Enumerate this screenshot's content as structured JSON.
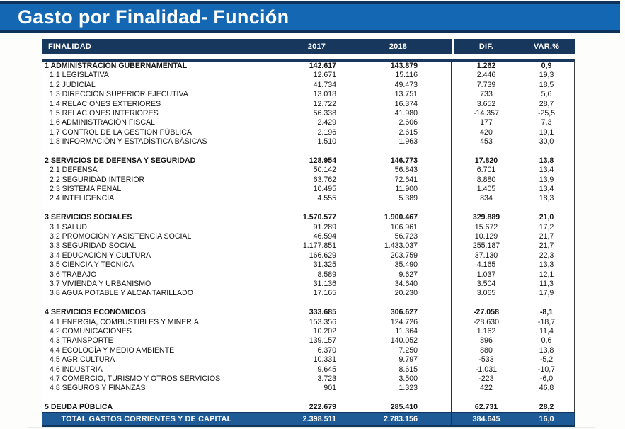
{
  "title": "Gasto por Finalidad- Función",
  "colors": {
    "banner_blue": "#1467b2",
    "header_navy": "#17375d",
    "total_blue": "#1e5a96",
    "divider_line": "#2e2e2e"
  },
  "table": {
    "columns": [
      "FINALIDAD",
      "2017",
      "2018",
      "DIF.",
      "VAR.%"
    ],
    "sections": [
      {
        "label": "1 ADMINISTRACION GUBERNAMENTAL",
        "y2017": "142.617",
        "y2018": "143.879",
        "dif": "1.262",
        "var": "0,9",
        "rows": [
          {
            "label": "1.1  LEGISLATIVA",
            "y2017": "12.671",
            "y2018": "15.116",
            "dif": "2.446",
            "var": "19,3"
          },
          {
            "label": "1.2  JUDICIAL",
            "y2017": "41.734",
            "y2018": "49.473",
            "dif": "7.739",
            "var": "18,5"
          },
          {
            "label": "1.3  DIRECCIÓN SUPERIOR EJECUTIVA",
            "y2017": "13.018",
            "y2018": "13.751",
            "dif": "733",
            "var": "5,6"
          },
          {
            "label": "1.4  RELACIONES EXTERIORES",
            "y2017": "12.722",
            "y2018": "16.374",
            "dif": "3.652",
            "var": "28,7"
          },
          {
            "label": "1.5  RELACIONES INTERIORES",
            "y2017": "56.338",
            "y2018": "41.980",
            "dif": "-14.357",
            "var": "-25,5"
          },
          {
            "label": "1.6  ADMINISTRACIÓN FISCAL",
            "y2017": "2.429",
            "y2018": "2.606",
            "dif": "177",
            "var": "7,3"
          },
          {
            "label": "1.7  CONTROL DE LA GESTIÓN PÚBLICA",
            "y2017": "2.196",
            "y2018": "2.615",
            "dif": "420",
            "var": "19,1"
          },
          {
            "label": "1.8  INFORMACIÓN Y ESTADÍSTICA BÁSICAS",
            "y2017": "1.510",
            "y2018": "1.963",
            "dif": "453",
            "var": "30,0"
          }
        ]
      },
      {
        "label": "2 SERVICIOS DE DEFENSA Y SEGURIDAD",
        "y2017": "128.954",
        "y2018": "146.773",
        "dif": "17.820",
        "var": "13,8",
        "rows": [
          {
            "label": "2.1  DEFENSA",
            "y2017": "50.142",
            "y2018": "56.843",
            "dif": "6.701",
            "var": "13,4"
          },
          {
            "label": "2.2  SEGURIDAD INTERIOR",
            "y2017": "63.762",
            "y2018": "72.641",
            "dif": "8.880",
            "var": "13,9"
          },
          {
            "label": "2.3  SISTEMA PENAL",
            "y2017": "10.495",
            "y2018": "11.900",
            "dif": "1.405",
            "var": "13,4"
          },
          {
            "label": "2.4  INTELIGENCIA",
            "y2017": "4.555",
            "y2018": "5.389",
            "dif": "834",
            "var": "18,3"
          }
        ]
      },
      {
        "label": "3 SERVICIOS SOCIALES",
        "y2017": "1.570.577",
        "y2018": "1.900.467",
        "dif": "329.889",
        "var": "21,0",
        "rows": [
          {
            "label": "3.1  SALUD",
            "y2017": "91.289",
            "y2018": "106.961",
            "dif": "15.672",
            "var": "17,2"
          },
          {
            "label": "3.2  PROMOCIÓN Y ASISTENCIA SOCIAL",
            "y2017": "46.594",
            "y2018": "56.723",
            "dif": "10.129",
            "var": "21,7"
          },
          {
            "label": "3.3  SEGURIDAD SOCIAL",
            "y2017": "1.177.851",
            "y2018": "1.433.037",
            "dif": "255.187",
            "var": "21,7"
          },
          {
            "label": "3.4  EDUCACIÓN Y CULTURA",
            "y2017": "166.629",
            "y2018": "203.759",
            "dif": "37.130",
            "var": "22,3"
          },
          {
            "label": "3.5  CIENCIA Y TÉCNICA",
            "y2017": "31.325",
            "y2018": "35.490",
            "dif": "4.165",
            "var": "13,3"
          },
          {
            "label": "3.6  TRABAJO",
            "y2017": "8.589",
            "y2018": "9.627",
            "dif": "1.037",
            "var": "12,1"
          },
          {
            "label": "3.7  VIVIENDA Y URBANISMO",
            "y2017": "31.136",
            "y2018": "34.640",
            "dif": "3.504",
            "var": "11,3"
          },
          {
            "label": "3.8  AGUA POTABLE Y ALCANTARILLADO",
            "y2017": "17.165",
            "y2018": "20.230",
            "dif": "3.065",
            "var": "17,9"
          }
        ]
      },
      {
        "label": "4 SERVICIOS ECONÓMICOS",
        "y2017": "333.685",
        "y2018": "306.627",
        "dif": "-27.058",
        "var": "-8,1",
        "rows": [
          {
            "label": "4.1  ENERGIA, COMBUSTIBLES Y MINERIA",
            "y2017": "153.356",
            "y2018": "124.726",
            "dif": "-28.630",
            "var": "-18,7"
          },
          {
            "label": "4.2  COMUNICACIONES",
            "y2017": "10.202",
            "y2018": "11.364",
            "dif": "1.162",
            "var": "11,4"
          },
          {
            "label": "4.3  TRANSPORTE",
            "y2017": "139.157",
            "y2018": "140.052",
            "dif": "896",
            "var": "0,6"
          },
          {
            "label": "4.4  ECOLOGÍA Y MEDIO AMBIENTE",
            "y2017": "6.370",
            "y2018": "7.250",
            "dif": "880",
            "var": "13,8"
          },
          {
            "label": "4.5  AGRICULTURA",
            "y2017": "10.331",
            "y2018": "9.797",
            "dif": "-533",
            "var": "-5,2"
          },
          {
            "label": "4.6  INDUSTRIA",
            "y2017": "9.645",
            "y2018": "8.615",
            "dif": "-1.031",
            "var": "-10,7"
          },
          {
            "label": "4.7  COMERCIO, TURISMO Y OTROS SERVICIOS",
            "y2017": "3.723",
            "y2018": "3.500",
            "dif": "-223",
            "var": "-6,0"
          },
          {
            "label": "4.8  SEGUROS Y FINANZAS",
            "y2017": "901",
            "y2018": "1.323",
            "dif": "422",
            "var": "46,8"
          }
        ]
      },
      {
        "label": "5 DEUDA PÚBLICA",
        "y2017": "222.679",
        "y2018": "285.410",
        "dif": "62.731",
        "var": "28,2",
        "rows": []
      }
    ],
    "total": {
      "label": "TOTAL GASTOS CORRIENTES Y DE CAPITAL",
      "y2017": "2.398.511",
      "y2018": "2.783.156",
      "dif": "384.645",
      "var": "16,0"
    }
  }
}
